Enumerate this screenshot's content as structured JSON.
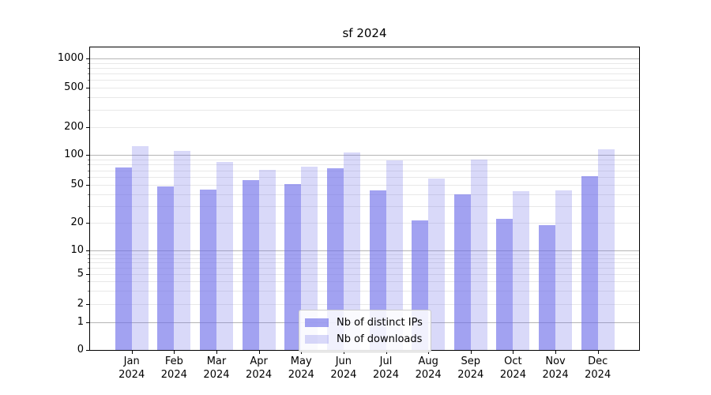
{
  "chart_data": {
    "type": "bar",
    "title": "sf 2024",
    "categories": [
      "Jan 2024",
      "Feb 2024",
      "Mar 2024",
      "Apr 2024",
      "May 2024",
      "Jun 2024",
      "Jul 2024",
      "Aug 2024",
      "Sep 2024",
      "Oct 2024",
      "Nov 2024",
      "Dec 2024"
    ],
    "series": [
      {
        "name": "Nb of distinct IPs",
        "color": "rgba(108,108,233,0.63)",
        "values": [
          75,
          48,
          45,
          56,
          51,
          73,
          44,
          21,
          40,
          22,
          19,
          61
        ]
      },
      {
        "name": "Nb of downloads",
        "color": "rgba(108,108,233,0.26)",
        "values": [
          124,
          111,
          85,
          71,
          76,
          106,
          88,
          58,
          90,
          43,
          44,
          114
        ]
      }
    ],
    "xlabel": "",
    "ylabel": "",
    "yscale": "symlog",
    "yticks": [
      0,
      1,
      2,
      5,
      10,
      20,
      50,
      100,
      200,
      500,
      1000
    ],
    "ylim": [
      0,
      1300
    ],
    "grid": true,
    "legend_position": "lower center"
  },
  "colors": {
    "grid_major": "#b5b5b5",
    "grid_minor": "#e8e8e8",
    "axis": "#000000",
    "legend_border": "#cccccc",
    "legend_background": "rgba(255,255,255,0.85)",
    "text": "#000000",
    "background": "#ffffff"
  }
}
